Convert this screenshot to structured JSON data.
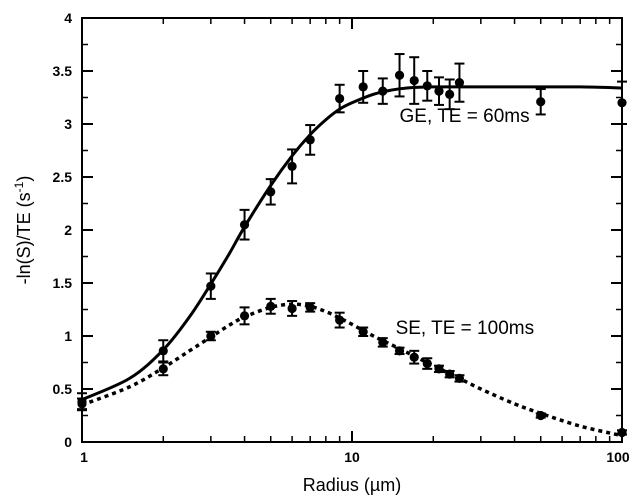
{
  "chart_data": {
    "type": "scatter",
    "xscale": "log",
    "xlim": [
      1,
      100
    ],
    "ylim": [
      0,
      4
    ],
    "xticks": [
      1,
      10,
      100
    ],
    "xtick_labels": [
      "1",
      "10",
      "100"
    ],
    "yticks": [
      0,
      0.5,
      1,
      1.5,
      2,
      2.5,
      3,
      3.5,
      4
    ],
    "ytick_labels": [
      "0",
      "0.5",
      "1",
      "1.5",
      "2",
      "2.5",
      "3",
      "3.5",
      "4"
    ],
    "xlabel": "Radius (µm)",
    "ylabel_main": "-ln(S)/TE (s",
    "ylabel_sup": "-1",
    "ylabel_close": ")",
    "grid": false,
    "annotations": [
      {
        "text": "GE, TE = 60ms",
        "x": 15,
        "y": 3.02
      },
      {
        "text": "SE, TE = 100ms",
        "x": 14.5,
        "y": 1.02
      }
    ],
    "series": [
      {
        "marker": "circle",
        "fit_style": "solid",
        "x": [
          1,
          2,
          3,
          4,
          5,
          6,
          7,
          9,
          11,
          13,
          15,
          17,
          19,
          21,
          23,
          25,
          50,
          100
        ],
        "y": [
          0.38,
          0.86,
          1.47,
          2.05,
          2.36,
          2.6,
          2.85,
          3.24,
          3.35,
          3.31,
          3.46,
          3.41,
          3.36,
          3.31,
          3.28,
          3.39,
          3.21,
          3.2
        ],
        "err": [
          0.08,
          0.1,
          0.12,
          0.14,
          0.12,
          0.16,
          0.14,
          0.13,
          0.15,
          0.12,
          0.2,
          0.22,
          0.14,
          0.13,
          0.14,
          0.18,
          0.12,
          0.2
        ],
        "fit_x": [
          1,
          1.5,
          2,
          2.5,
          3,
          3.5,
          4,
          5,
          6,
          7,
          8,
          9,
          10,
          12,
          14,
          16,
          20,
          30,
          50,
          70,
          100
        ],
        "fit_y": [
          0.4,
          0.6,
          0.87,
          1.18,
          1.49,
          1.77,
          2.03,
          2.42,
          2.7,
          2.9,
          3.04,
          3.14,
          3.2,
          3.28,
          3.32,
          3.34,
          3.35,
          3.35,
          3.35,
          3.35,
          3.34
        ]
      },
      {
        "marker": "circle",
        "fit_style": "dotted",
        "x": [
          1,
          2,
          3,
          4,
          5,
          6,
          7,
          9,
          11,
          13,
          15,
          17,
          19,
          21,
          23,
          25,
          50,
          100
        ],
        "y": [
          0.36,
          0.69,
          1.0,
          1.19,
          1.28,
          1.26,
          1.27,
          1.15,
          1.04,
          0.94,
          0.86,
          0.8,
          0.74,
          0.69,
          0.64,
          0.6,
          0.25,
          0.09
        ],
        "err": [
          0.05,
          0.06,
          0.04,
          0.08,
          0.07,
          0.07,
          0.04,
          0.07,
          0.04,
          0.04,
          0.03,
          0.06,
          0.05,
          0.03,
          0.03,
          0.03,
          0.02,
          0.02
        ],
        "fit_x": [
          1,
          1.5,
          2,
          2.5,
          3,
          3.5,
          4,
          5,
          6,
          7,
          8,
          9,
          10,
          12,
          15,
          20,
          25,
          30,
          40,
          50,
          70,
          100
        ],
        "fit_y": [
          0.35,
          0.52,
          0.7,
          0.86,
          0.99,
          1.1,
          1.18,
          1.27,
          1.3,
          1.28,
          1.23,
          1.17,
          1.11,
          1.0,
          0.88,
          0.72,
          0.6,
          0.5,
          0.36,
          0.27,
          0.15,
          0.06
        ]
      }
    ]
  }
}
